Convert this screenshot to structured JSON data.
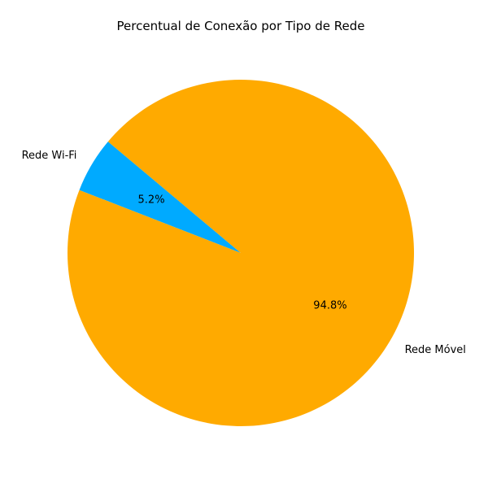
{
  "chart_data": {
    "type": "pie",
    "title": "Percentual de Conexão por Tipo de Rede",
    "categories": [
      "Rede Wi-Fi",
      "Rede Móvel"
    ],
    "values": [
      5.2,
      94.8
    ],
    "percent_labels": [
      "5.2%",
      "94.8%"
    ],
    "colors": [
      "#00aaff",
      "#ffaa00"
    ],
    "start_angle_deg": 140,
    "legend": "none"
  }
}
